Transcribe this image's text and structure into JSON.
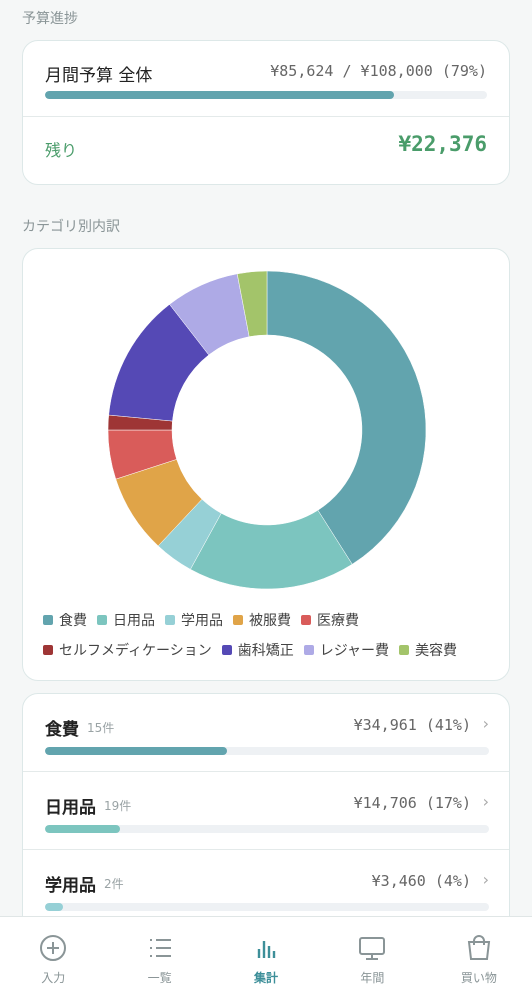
{
  "budget_section": {
    "title": "予算進捗",
    "label": "月間予算 全体",
    "amount": "¥85,624 / ¥108,000 (79%)",
    "progress": 79,
    "color": "#62a4ae",
    "remaining_label": "残り",
    "remaining_amount": "¥22,376"
  },
  "breakdown": {
    "title": "カテゴリ別内訳",
    "type": "donut",
    "categories": [
      "食費",
      "日用品",
      "学用品",
      "被服費",
      "医療費",
      "セルフメディケーション",
      "歯科矯正",
      "レジャー費",
      "美容費"
    ],
    "values": [
      41,
      17,
      4,
      8,
      5,
      1.5,
      13,
      7.5,
      3
    ],
    "colors": [
      "#62a4ae",
      "#7cc5bf",
      "#96d0d6",
      "#e0a448",
      "#d95c5a",
      "#9e3535",
      "#5549b5",
      "#aeaae6",
      "#a3c46a"
    ]
  },
  "items": [
    {
      "name": "食費",
      "count": "15件",
      "amount": "¥34,961 (41%)",
      "share": 41,
      "color": "#62a4ae"
    },
    {
      "name": "日用品",
      "count": "19件",
      "amount": "¥14,706 (17%)",
      "share": 17,
      "color": "#7cc5bf"
    },
    {
      "name": "学用品",
      "count": "2件",
      "amount": "¥3,460 (4%)",
      "share": 4,
      "color": "#96d0d6"
    }
  ],
  "nav": {
    "items": [
      "入力",
      "一覧",
      "集計",
      "年間",
      "買い物"
    ],
    "active": "集計"
  }
}
